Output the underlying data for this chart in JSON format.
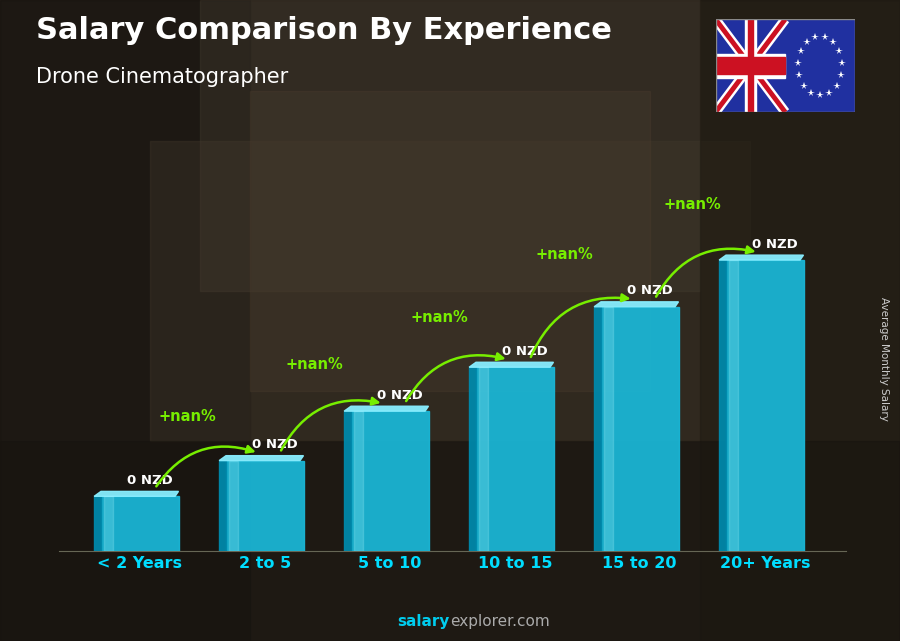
{
  "title": "Salary Comparison By Experience",
  "subtitle": "Drone Cinematographer",
  "categories": [
    "< 2 Years",
    "2 to 5",
    "5 to 10",
    "10 to 15",
    "15 to 20",
    "20+ Years"
  ],
  "labels": [
    "0 NZD",
    "0 NZD",
    "0 NZD",
    "0 NZD",
    "0 NZD",
    "0 NZD"
  ],
  "pct_labels": [
    "+nan%",
    "+nan%",
    "+nan%",
    "+nan%",
    "+nan%"
  ],
  "ylabel": "Average Monthly Salary",
  "footer_bold": "salary",
  "footer_regular": "explorer.com",
  "bar_main": "#1ab8d8",
  "bar_light": "#6de8f8",
  "bar_dark": "#0088aa",
  "bar_top": "#88eeff",
  "bar_heights": [
    1.0,
    1.65,
    2.55,
    3.35,
    4.45,
    5.3
  ],
  "ylim": [
    0,
    7.0
  ],
  "pct_color": "#77ee00",
  "arrow_color": "#77ee00",
  "title_fontsize": 22,
  "subtitle_fontsize": 15,
  "xlabel_color": "#00ddff",
  "label_color": "#ffffff",
  "ylabel_color": "#cccccc",
  "footer_color": "#aaaaaa",
  "bg_color": "#3a3530"
}
